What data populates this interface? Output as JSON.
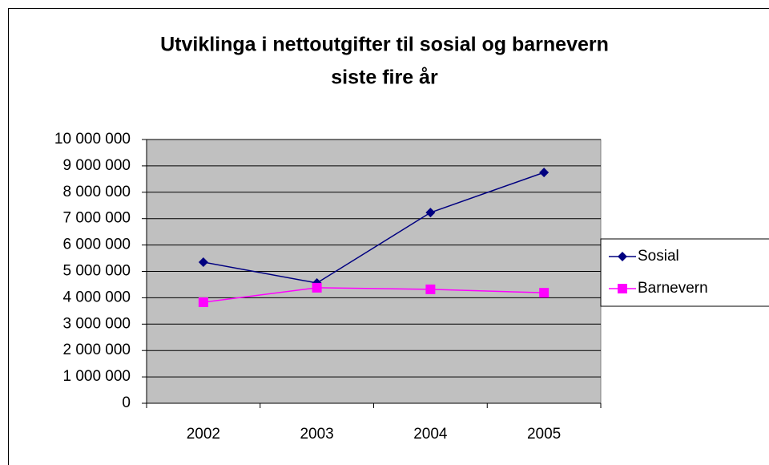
{
  "chart_data": {
    "type": "line",
    "title": [
      "Utviklinga i nettoutgifter til sosial og barnevern",
      "siste fire år"
    ],
    "categories": [
      "2002",
      "2003",
      "2004",
      "2005"
    ],
    "series": [
      {
        "name": "Sosial",
        "color": "#000080",
        "marker": "diamond",
        "values": [
          5350000,
          4560000,
          7230000,
          8750000
        ]
      },
      {
        "name": "Barnevern",
        "color": "#ff00ff",
        "marker": "square",
        "values": [
          3830000,
          4380000,
          4320000,
          4190000
        ]
      }
    ],
    "ylim": [
      0,
      10000000
    ],
    "yticks": [
      0,
      {
        "value": 1000000,
        "label": "1 000 000"
      },
      {
        "value": 2000000,
        "label": "2 000 000"
      },
      {
        "value": 3000000,
        "label": "3 000 000"
      },
      {
        "value": 4000000,
        "label": "4 000 000"
      },
      {
        "value": 5000000,
        "label": "5 000 000"
      },
      {
        "value": 6000000,
        "label": "6 000 000"
      },
      {
        "value": 7000000,
        "label": "7 000 000"
      },
      {
        "value": 8000000,
        "label": "8 000 000"
      },
      {
        "value": 9000000,
        "label": "9 000 000"
      },
      {
        "value": 10000000,
        "label": "10 000 000"
      }
    ],
    "grid": true,
    "legend": "right"
  }
}
